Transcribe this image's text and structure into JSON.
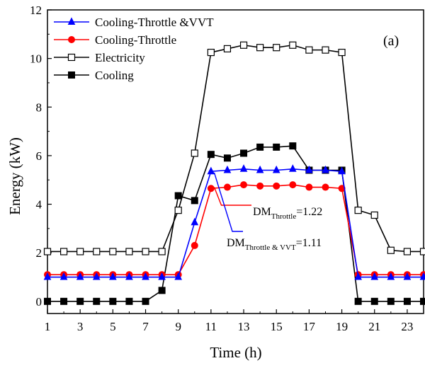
{
  "chart_data": {
    "type": "line",
    "title": "",
    "panel_label": "(a)",
    "xlabel": "Time (h)",
    "ylabel": "Energy (kW)",
    "xlim": [
      1,
      24
    ],
    "ylim": [
      -0.5,
      12
    ],
    "xticks": [
      1,
      3,
      5,
      7,
      9,
      11,
      13,
      15,
      17,
      19,
      21,
      23
    ],
    "yticks": [
      0,
      2,
      4,
      6,
      8,
      10,
      12
    ],
    "x": [
      1,
      2,
      3,
      4,
      5,
      6,
      7,
      8,
      9,
      10,
      11,
      12,
      13,
      14,
      15,
      16,
      17,
      18,
      19,
      20,
      21,
      22,
      23,
      24
    ],
    "series": [
      {
        "name": "Cooling-Throttle &VVT",
        "color": "#0000ff",
        "marker": "triangle-filled",
        "values": [
          1.0,
          1.0,
          1.0,
          1.0,
          1.0,
          1.0,
          1.0,
          1.0,
          1.0,
          3.25,
          5.35,
          5.4,
          5.45,
          5.4,
          5.4,
          5.45,
          5.4,
          5.4,
          5.35,
          1.0,
          1.0,
          1.0,
          1.0,
          1.0
        ]
      },
      {
        "name": "Cooling-Throttle",
        "color": "#ff0000",
        "marker": "circle-filled",
        "values": [
          1.1,
          1.1,
          1.1,
          1.1,
          1.1,
          1.1,
          1.1,
          1.1,
          1.1,
          2.3,
          4.65,
          4.7,
          4.8,
          4.75,
          4.75,
          4.8,
          4.7,
          4.7,
          4.65,
          1.1,
          1.1,
          1.1,
          1.1,
          1.1
        ]
      },
      {
        "name": "Electricity",
        "color": "#000000",
        "marker": "square-open",
        "values": [
          2.05,
          2.05,
          2.05,
          2.05,
          2.05,
          2.05,
          2.05,
          2.05,
          3.75,
          6.1,
          10.25,
          10.4,
          10.55,
          10.45,
          10.45,
          10.55,
          10.35,
          10.35,
          10.25,
          3.75,
          3.55,
          2.1,
          2.05,
          2.05
        ]
      },
      {
        "name": "Cooling",
        "color": "#000000",
        "marker": "square-filled",
        "values": [
          0.0,
          0.0,
          0.0,
          0.0,
          0.0,
          0.0,
          0.0,
          0.45,
          4.35,
          4.15,
          6.05,
          5.9,
          6.1,
          6.35,
          6.35,
          6.4,
          5.4,
          5.4,
          5.4,
          0.0,
          0.0,
          0.0,
          0.0,
          0.0
        ]
      }
    ],
    "annotations": [
      {
        "base": "DM",
        "sub": "Throttle",
        "rest": "=1.22",
        "color": "#ff0000",
        "points_to_x": 11.2,
        "points_to_y": 4.7
      },
      {
        "base": "DM",
        "sub": "Throttle & VVT",
        "rest": "=1.11",
        "color": "#0000ff",
        "points_to_x": 11.2,
        "points_to_y": 5.3
      }
    ],
    "legend_position": "top-left",
    "grid": false
  }
}
